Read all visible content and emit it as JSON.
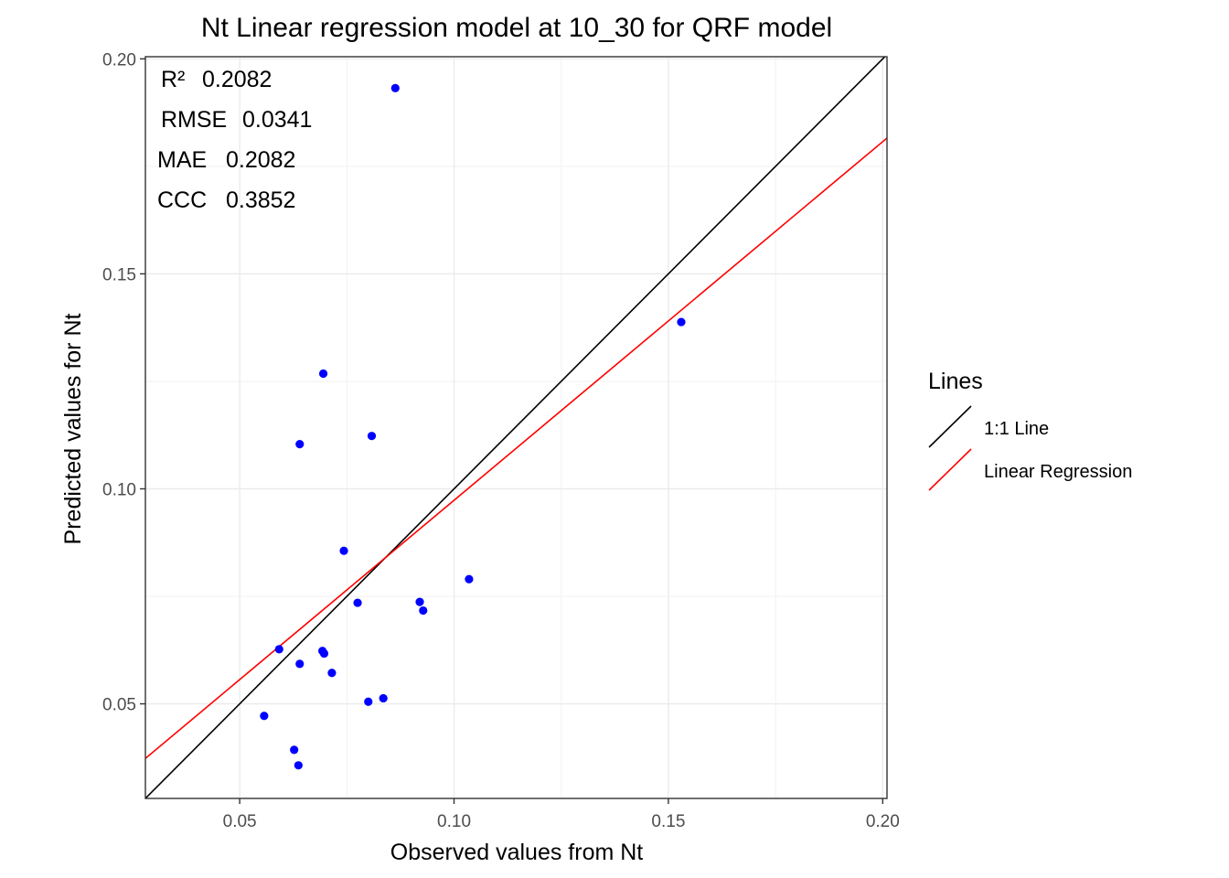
{
  "chart_data": {
    "type": "scatter",
    "title": "Nt  Linear regression model at  10_30  for  QRF  model",
    "xlabel": "Observed values from Nt",
    "ylabel": "Predicted values for Nt",
    "xlim": [
      0.028,
      0.201
    ],
    "ylim": [
      0.028,
      0.2005
    ],
    "x_ticks": [
      0.05,
      0.1,
      0.15,
      0.2
    ],
    "x_tick_labels": [
      "0.05",
      "0.10",
      "0.15",
      "0.20"
    ],
    "y_ticks": [
      0.05,
      0.1,
      0.15,
      0.2
    ],
    "y_tick_labels": [
      "0.05",
      "0.10",
      "0.15",
      "0.20"
    ],
    "grid": true,
    "point_color": "#0000ff",
    "points": [
      {
        "x": 0.0863,
        "y": 0.1932
      },
      {
        "x": 0.153,
        "y": 0.1388
      },
      {
        "x": 0.0695,
        "y": 0.1268
      },
      {
        "x": 0.0808,
        "y": 0.1123
      },
      {
        "x": 0.064,
        "y": 0.1104
      },
      {
        "x": 0.0743,
        "y": 0.0856
      },
      {
        "x": 0.1035,
        "y": 0.079
      },
      {
        "x": 0.092,
        "y": 0.0737
      },
      {
        "x": 0.0928,
        "y": 0.0717
      },
      {
        "x": 0.0775,
        "y": 0.0735
      },
      {
        "x": 0.0592,
        "y": 0.0627
      },
      {
        "x": 0.0693,
        "y": 0.0623
      },
      {
        "x": 0.0697,
        "y": 0.0617
      },
      {
        "x": 0.064,
        "y": 0.0593
      },
      {
        "x": 0.0715,
        "y": 0.0572
      },
      {
        "x": 0.08,
        "y": 0.0505
      },
      {
        "x": 0.0835,
        "y": 0.0513
      },
      {
        "x": 0.0557,
        "y": 0.0472
      },
      {
        "x": 0.0627,
        "y": 0.0393
      },
      {
        "x": 0.0637,
        "y": 0.0357
      }
    ],
    "lines": [
      {
        "name": "1:1 Line",
        "color": "#000000",
        "slope": 1.0,
        "intercept": 0.0
      },
      {
        "name": "Linear Regression",
        "color": "#ff0000",
        "slope": 0.834,
        "intercept": 0.01394
      }
    ],
    "legend": {
      "title": "Lines",
      "position": "right",
      "entries": [
        "1:1 Line",
        "Linear Regression"
      ]
    },
    "annotations": [
      {
        "label": "R²",
        "value": "0.2082"
      },
      {
        "label": "RMSE",
        "value": "0.0341"
      },
      {
        "label": "MAE",
        "value": "0.2082"
      },
      {
        "label": "CCC",
        "value": "0.3852"
      }
    ]
  }
}
